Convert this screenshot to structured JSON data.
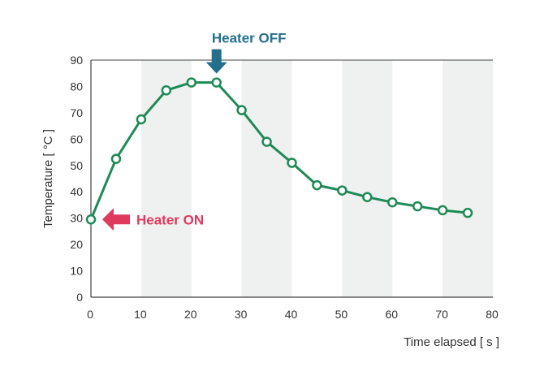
{
  "chart_data": {
    "type": "line",
    "title": "",
    "xlabel": "Time elapsed [ s ]",
    "ylabel": "Temperature [ °C ]",
    "xlim": [
      0,
      80
    ],
    "ylim": [
      0,
      90
    ],
    "x_ticks": [
      0,
      10,
      20,
      30,
      40,
      50,
      60,
      70,
      80
    ],
    "y_ticks": [
      0,
      10,
      20,
      30,
      40,
      50,
      60,
      70,
      80,
      90
    ],
    "shaded_bands": [
      [
        10,
        20
      ],
      [
        30,
        40
      ],
      [
        50,
        60
      ],
      [
        70,
        80
      ]
    ],
    "series": [
      {
        "x": [
          0,
          5,
          10,
          15,
          20,
          25,
          30,
          35,
          40,
          45,
          50,
          55,
          60,
          65,
          70,
          75
        ],
        "y": [
          29.5,
          52.5,
          67.5,
          78.5,
          81.5,
          81.5,
          71,
          59,
          51,
          42.5,
          40.5,
          38,
          36,
          34.5,
          33,
          32
        ]
      }
    ],
    "annotations": [
      {
        "text": "Heater ON",
        "x": 0,
        "y": 29.5,
        "direction": "left-pointing arrow"
      },
      {
        "text": "Heater OFF",
        "x": 25,
        "y": 81.5,
        "direction": "down-pointing arrow"
      }
    ],
    "colors": {
      "line": "#1e8a55",
      "band": "#eef1ef",
      "heater_on": "#e0395e",
      "heater_off": "#236f8c",
      "axis": "#444444"
    }
  }
}
